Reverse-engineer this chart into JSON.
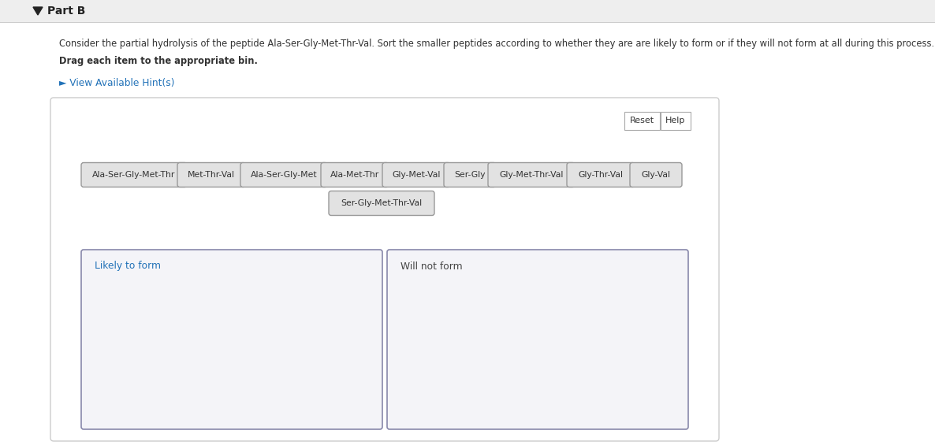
{
  "title": "Part B",
  "description_line1": "Consider the partial hydrolysis of the peptide Ala-Ser-Gly-Met-Thr-Val. Sort the smaller peptides according to whether they are are likely to form or if they will not form at all during this process.",
  "description_line2": "Drag each item to the appropriate bin.",
  "hint_text": "► View Available Hint(s)",
  "peptides_row1": [
    "Ala-Ser-Gly-Met-Thr",
    "Met-Thr-Val",
    "Ala-Ser-Gly-Met",
    "Ala-Met-Thr",
    "Gly-Met-Val",
    "Ser-Gly",
    "Gly-Met-Thr-Val",
    "Gly-Thr-Val",
    "Gly-Val"
  ],
  "peptides_row2": [
    "Ser-Gly-Met-Thr-Val"
  ],
  "bin_label_left": "Likely to form",
  "bin_label_right": "Will not form",
  "header_bg": "#eeeeee",
  "page_bg": "#f0f0f0",
  "white": "#ffffff",
  "title_color": "#222222",
  "text_color": "#333333",
  "hint_color": "#2272b8",
  "bin_label_left_color": "#2272b8",
  "bin_label_right_color": "#444444",
  "button_border": "#aaaaaa",
  "button_bg": "#ffffff",
  "pill_bg": "#e2e2e2",
  "pill_border": "#999999",
  "panel_border": "#cccccc",
  "panel_bg": "#ffffff",
  "bin_border": "#8888aa",
  "bin_fill": "#f4f4f8",
  "reset_label": "Reset",
  "help_label": "Help"
}
